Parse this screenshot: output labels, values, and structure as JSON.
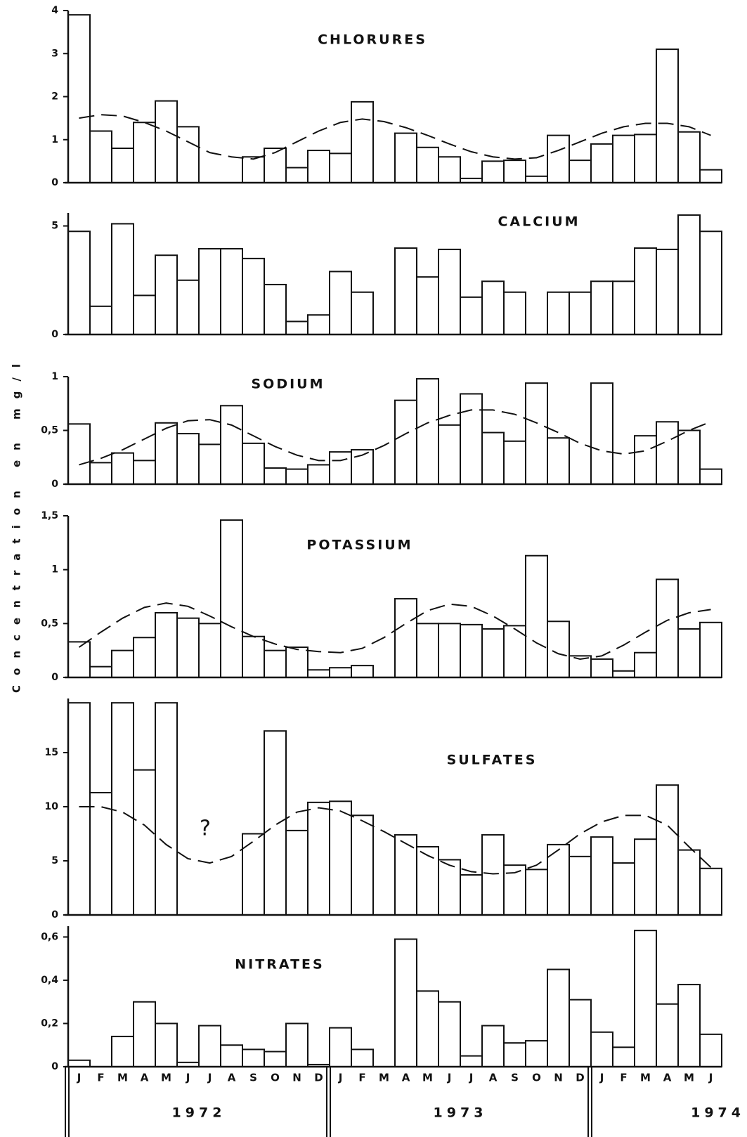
{
  "ylabel": "Concentration en mg/l",
  "chart_data": [
    {
      "type": "bar",
      "title": "CHLORURES",
      "ylim": [
        0,
        4
      ],
      "yticks": [
        0,
        1,
        2,
        3,
        4
      ],
      "values": [
        3.9,
        1.2,
        0.8,
        1.4,
        1.9,
        1.3,
        null,
        null,
        0.6,
        0.8,
        0.35,
        0.75,
        0.68,
        1.88,
        null,
        1.15,
        0.82,
        0.6,
        0.1,
        0.5,
        0.52,
        0.15,
        1.1,
        0.52,
        0.9,
        1.1,
        1.12,
        3.1,
        1.18,
        0.3
      ],
      "trend": [
        1.5,
        1.58,
        1.55,
        1.4,
        1.2,
        0.95,
        0.7,
        0.6,
        0.55,
        0.7,
        0.95,
        1.2,
        1.4,
        1.48,
        1.42,
        1.28,
        1.1,
        0.9,
        0.72,
        0.6,
        0.55,
        0.58,
        0.75,
        0.95,
        1.15,
        1.3,
        1.38,
        1.38,
        1.3,
        1.1
      ]
    },
    {
      "type": "bar",
      "title": "CALCIUM",
      "ylim": [
        0,
        5.6
      ],
      "yticks": [
        0,
        5
      ],
      "values": [
        4.75,
        1.3,
        5.1,
        1.8,
        3.65,
        2.5,
        3.95,
        3.95,
        3.5,
        2.3,
        0.6,
        0.9,
        2.9,
        1.95,
        null,
        3.98,
        2.65,
        3.92,
        1.72,
        2.45,
        1.95,
        null,
        1.95,
        1.95,
        2.45,
        2.45,
        3.98,
        3.92,
        5.5,
        4.75
      ]
    },
    {
      "type": "bar",
      "title": "SODIUM",
      "ylim": [
        0,
        1
      ],
      "yticks": [
        0,
        {
          "value": 0.5,
          "label": "0,5"
        },
        1
      ],
      "values": [
        0.56,
        0.2,
        0.29,
        0.22,
        0.57,
        0.47,
        0.37,
        0.73,
        0.38,
        0.15,
        0.14,
        0.18,
        0.3,
        0.32,
        null,
        0.78,
        0.98,
        0.55,
        0.84,
        0.48,
        0.4,
        0.94,
        0.43,
        null,
        0.94,
        null,
        0.45,
        0.58,
        0.5,
        0.14
      ],
      "trend": [
        0.18,
        0.24,
        0.32,
        0.42,
        0.52,
        0.59,
        0.6,
        0.55,
        0.45,
        0.35,
        0.27,
        0.22,
        0.22,
        0.27,
        0.36,
        0.47,
        0.57,
        0.64,
        0.69,
        0.69,
        0.65,
        0.57,
        0.48,
        0.38,
        0.31,
        0.28,
        0.31,
        0.4,
        0.5,
        0.58
      ]
    },
    {
      "type": "bar",
      "title": "POTASSIUM",
      "ylim": [
        0,
        1.5
      ],
      "yticks": [
        0,
        {
          "value": 0.5,
          "label": "0,5"
        },
        1,
        {
          "value": 1.5,
          "label": "1,5"
        }
      ],
      "values": [
        0.33,
        0.1,
        0.25,
        0.37,
        0.6,
        0.55,
        0.5,
        1.46,
        0.38,
        0.25,
        0.28,
        0.07,
        0.09,
        0.11,
        null,
        0.73,
        0.5,
        0.5,
        0.49,
        0.45,
        0.48,
        1.13,
        0.52,
        0.2,
        0.17,
        0.06,
        0.23,
        0.91,
        0.45,
        0.51
      ],
      "trend": [
        0.28,
        0.42,
        0.55,
        0.65,
        0.69,
        0.66,
        0.57,
        0.47,
        0.38,
        0.31,
        0.26,
        0.24,
        0.23,
        0.27,
        0.37,
        0.5,
        0.62,
        0.68,
        0.66,
        0.57,
        0.45,
        0.32,
        0.22,
        0.17,
        0.2,
        0.3,
        0.42,
        0.53,
        0.6,
        0.63
      ]
    },
    {
      "type": "bar",
      "title": "SULFATES",
      "annotation": "?",
      "ylim": [
        0,
        20
      ],
      "yticks": [
        0,
        5,
        10,
        15
      ],
      "values": [
        19.6,
        11.3,
        19.6,
        13.4,
        19.6,
        null,
        null,
        null,
        7.5,
        17,
        7.8,
        10.4,
        10.5,
        9.2,
        null,
        7.4,
        6.3,
        5.1,
        3.7,
        7.4,
        4.6,
        4.2,
        6.5,
        5.4,
        7.2,
        4.8,
        7.0,
        12,
        6,
        4.3
      ],
      "trend": [
        10,
        10,
        9.5,
        8.3,
        6.5,
        5.2,
        4.8,
        5.4,
        6.8,
        8.3,
        9.5,
        9.9,
        9.6,
        8.7,
        7.7,
        6.6,
        5.5,
        4.6,
        4,
        3.8,
        3.9,
        4.6,
        6,
        7.5,
        8.6,
        9.2,
        9.2,
        8.3,
        6.3,
        4.4
      ]
    },
    {
      "type": "bar",
      "title": "NITRATES",
      "ylim": [
        0,
        0.65
      ],
      "yticks": [
        0,
        {
          "value": 0.2,
          "label": "0,2"
        },
        {
          "value": 0.4,
          "label": "0,4"
        },
        {
          "value": 0.6,
          "label": "0,6"
        }
      ],
      "values": [
        0.03,
        null,
        0.14,
        0.3,
        0.2,
        0.02,
        0.19,
        0.1,
        0.08,
        0.07,
        0.2,
        0.01,
        0.18,
        0.08,
        null,
        0.59,
        0.35,
        0.3,
        0.05,
        0.19,
        0.11,
        0.12,
        0.45,
        0.31,
        0.16,
        0.09,
        0.63,
        0.29,
        0.38,
        0.15
      ],
      "categories": [
        "J",
        "F",
        "M",
        "A",
        "M",
        "J",
        "J",
        "A",
        "S",
        "O",
        "N",
        "D",
        "J",
        "F",
        "M",
        "A",
        "M",
        "J",
        "J",
        "A",
        "S",
        "O",
        "N",
        "D",
        "J",
        "F",
        "M",
        "A",
        "M",
        "J"
      ],
      "years": [
        "1972",
        "1973",
        "1974"
      ]
    }
  ]
}
